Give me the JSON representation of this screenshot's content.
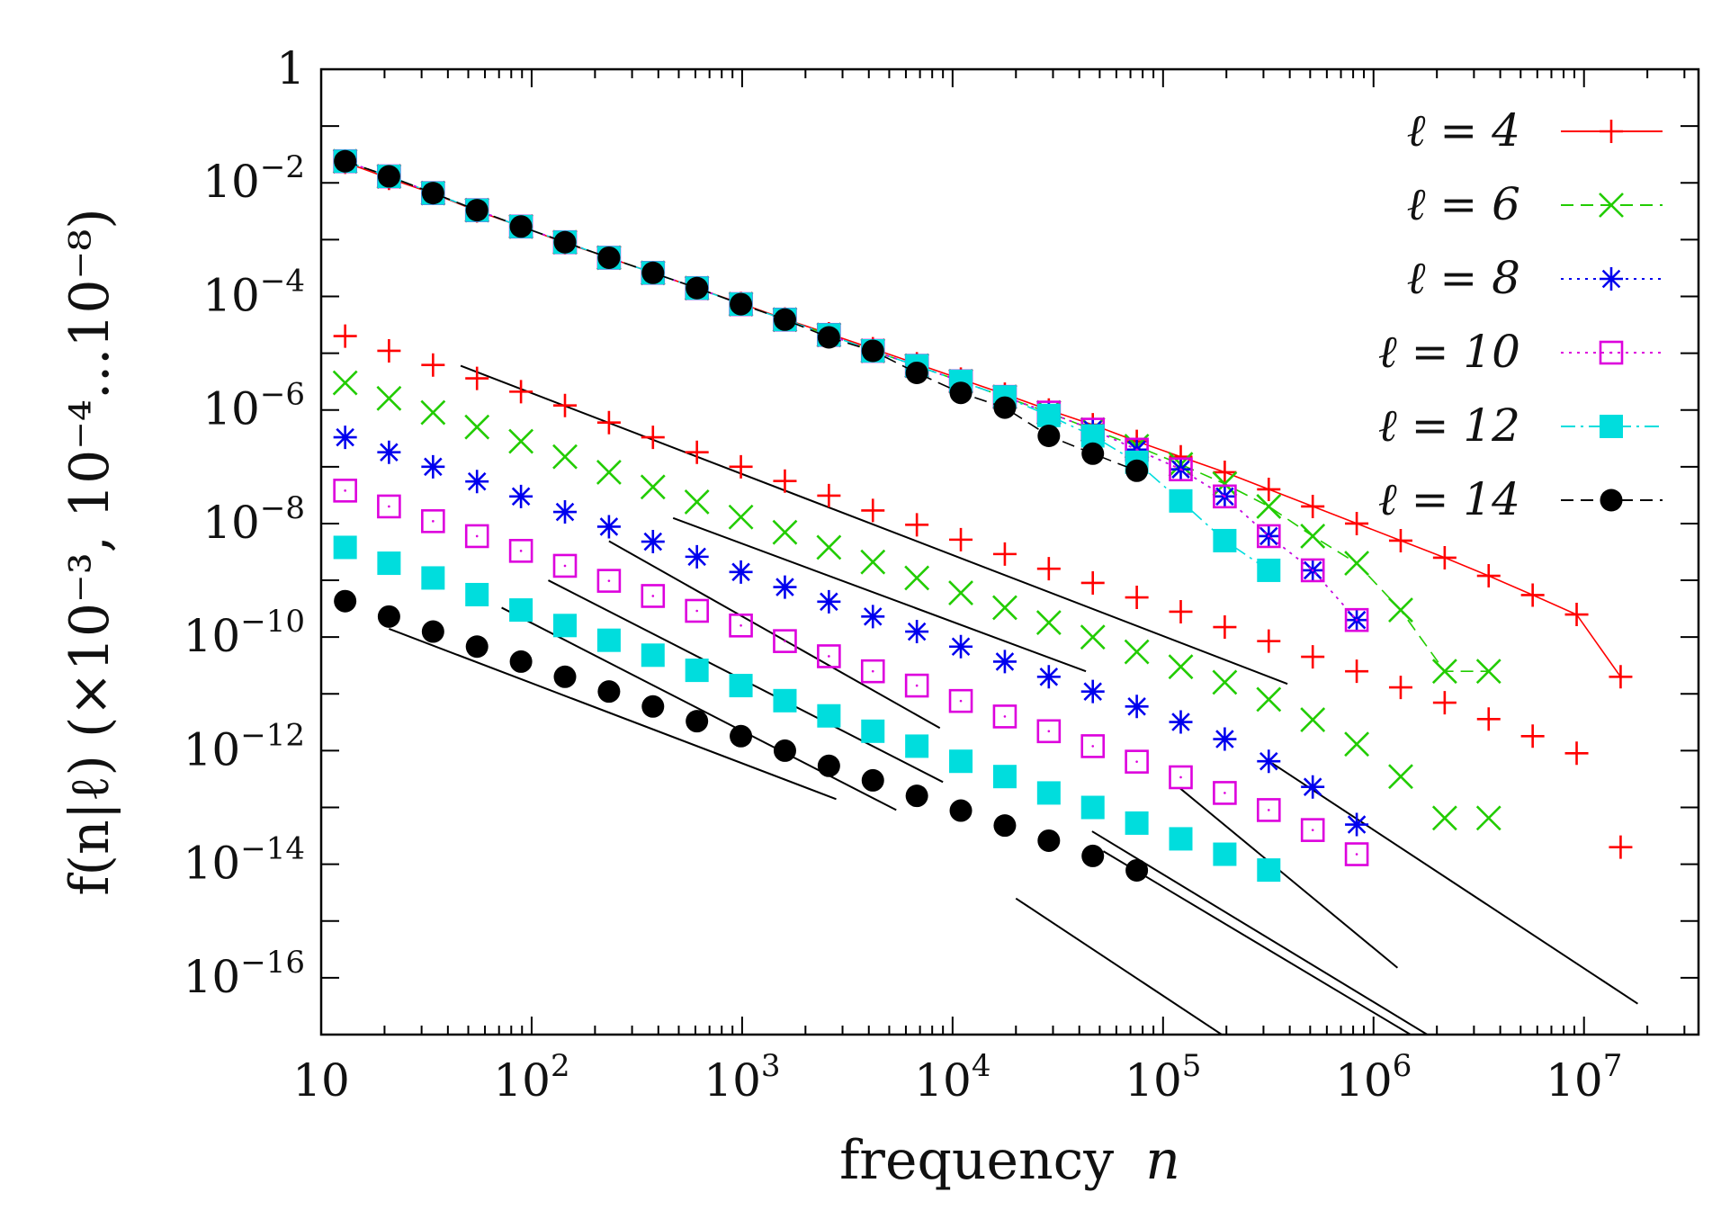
{
  "chart_data": {
    "type": "scatter",
    "title": "",
    "xlabel_text": "frequency",
    "xlabel_var": "n",
    "ylabel": "f(n|ℓ) (×10⁻³, 10⁻⁴...10⁻⁸)",
    "xscale": "log",
    "yscale": "log",
    "xlim": [
      10,
      35000000
    ],
    "ylim": [
      1e-17,
      1
    ],
    "x_ticks": [
      {
        "value": 10,
        "base": "10",
        "exp": ""
      },
      {
        "value": 100,
        "base": "10",
        "exp": "2"
      },
      {
        "value": 1000,
        "base": "10",
        "exp": "3"
      },
      {
        "value": 10000,
        "base": "10",
        "exp": "4"
      },
      {
        "value": 100000,
        "base": "10",
        "exp": "5"
      },
      {
        "value": 1000000,
        "base": "10",
        "exp": "6"
      },
      {
        "value": 10000000,
        "base": "10",
        "exp": "7"
      }
    ],
    "y_ticks": [
      {
        "value": 1,
        "base": "1",
        "exp": ""
      },
      {
        "value": 0.01,
        "base": "10",
        "exp": "−2"
      },
      {
        "value": 0.0001,
        "base": "10",
        "exp": "−4"
      },
      {
        "value": 1e-06,
        "base": "10",
        "exp": "−6"
      },
      {
        "value": 1e-08,
        "base": "10",
        "exp": "−8"
      },
      {
        "value": 1e-10,
        "base": "10",
        "exp": "−10"
      },
      {
        "value": 1e-12,
        "base": "10",
        "exp": "−12"
      },
      {
        "value": 1e-14,
        "base": "10",
        "exp": "−14"
      },
      {
        "value": 1e-16,
        "base": "10",
        "exp": "−16"
      }
    ],
    "legend_position": "top-right",
    "series": [
      {
        "name": "ℓ = 4",
        "marker": "plus",
        "color": "#ff0000",
        "line": "solid",
        "x": [
          13,
          21,
          34,
          55,
          89,
          144,
          233,
          377,
          610,
          987,
          1597,
          2584,
          4181,
          6765,
          10946,
          17711,
          28657,
          46368,
          75025,
          121393,
          196418,
          317811,
          514229,
          832040,
          1346269,
          2178309,
          3524578,
          5702887,
          9227465,
          14930352
        ],
        "unscaled": [
          0.023,
          0.012,
          0.0065,
          0.0032,
          0.0017,
          0.00088,
          0.00048,
          0.00026,
          0.00014,
          7.5e-05,
          4e-05,
          2.2e-05,
          1.2e-05,
          6.5e-06,
          3.5e-06,
          1.9e-06,
          1e-06,
          5.5e-07,
          2.8e-07,
          1.5e-07,
          8e-08,
          4e-08,
          2e-08,
          1e-08,
          5e-09,
          2.5e-09,
          1.2e-09,
          5.5e-10,
          2.5e-10,
          2e-11
        ],
        "scaled": [
          2e-05,
          1.1e-05,
          6.2e-06,
          3.6e-06,
          2.1e-06,
          1.2e-06,
          6e-07,
          3.3e-07,
          1.8e-07,
          1e-07,
          5.6e-08,
          3.1e-08,
          1.7e-08,
          9.5e-09,
          5.2e-09,
          2.9e-09,
          1.6e-09,
          9e-10,
          5e-10,
          2.8e-10,
          1.5e-10,
          8.5e-11,
          4.5e-11,
          2.5e-11,
          1.3e-11,
          7e-12,
          3.6e-12,
          1.8e-12,
          9e-13,
          2e-14
        ],
        "fit": {
          "x": [
            46,
            390000
          ],
          "y": [
            6e-06,
            1.5e-11
          ]
        }
      },
      {
        "name": "ℓ = 6",
        "marker": "cross",
        "color": "#22cc00",
        "line": "dashed",
        "x": [
          13,
          21,
          34,
          55,
          89,
          144,
          233,
          377,
          610,
          987,
          1597,
          2584,
          4181,
          6765,
          10946,
          17711,
          28657,
          46368,
          75025,
          121393,
          196418,
          317811,
          514229,
          832040,
          1346269,
          2178309,
          3524578
        ],
        "unscaled": [
          0.024,
          0.013,
          0.0066,
          0.0033,
          0.0017,
          0.0009,
          0.00048,
          0.00026,
          0.00014,
          7.3e-05,
          3.9e-05,
          2.1e-05,
          1.1e-05,
          6e-06,
          3.2e-06,
          1.7e-06,
          9e-07,
          4.5e-07,
          2.3e-07,
          1.1e-07,
          5e-08,
          2e-08,
          6e-09,
          2e-09,
          3e-10,
          2.5e-11,
          2.5e-11
        ],
        "scaled": [
          3e-06,
          1.6e-06,
          9e-07,
          5e-07,
          2.8e-07,
          1.5e-07,
          8e-08,
          4.4e-08,
          2.4e-08,
          1.3e-08,
          7e-09,
          3.8e-09,
          2.1e-09,
          1.1e-09,
          6e-10,
          3.3e-10,
          1.8e-10,
          1e-10,
          5.5e-11,
          3e-11,
          1.6e-11,
          8e-12,
          3.5e-12,
          1.3e-12,
          3.5e-13,
          6.5e-14,
          6.5e-14
        ],
        "fit": {
          "x": [
            470,
            43000
          ],
          "y": [
            1.25e-08,
            2.5e-11
          ]
        },
        "fit2": {
          "x": [
            330000,
            18000000
          ],
          "y": [
            6e-13,
            3.5e-17
          ]
        }
      },
      {
        "name": "ℓ = 8",
        "marker": "star",
        "color": "#0000ee",
        "line": "dotted",
        "x": [
          13,
          21,
          34,
          55,
          89,
          144,
          233,
          377,
          610,
          987,
          1597,
          2584,
          4181,
          6765,
          10946,
          17711,
          28657,
          46368,
          75025,
          121393,
          196418,
          317811,
          514229,
          832040
        ],
        "unscaled": [
          0.024,
          0.013,
          0.0066,
          0.0033,
          0.0017,
          0.0009,
          0.00048,
          0.00026,
          0.00014,
          7.3e-05,
          3.9e-05,
          2.1e-05,
          1.1e-05,
          6e-06,
          3.2e-06,
          1.7e-06,
          9e-07,
          4.5e-07,
          2e-07,
          9e-08,
          3e-08,
          6e-09,
          1.5e-09,
          2e-10
        ],
        "scaled": [
          3.3e-07,
          1.8e-07,
          1e-07,
          5.5e-08,
          3e-08,
          1.6e-08,
          8.8e-09,
          4.8e-09,
          2.6e-09,
          1.4e-09,
          7.6e-10,
          4.2e-10,
          2.3e-10,
          1.25e-10,
          6.8e-11,
          3.7e-11,
          2e-11,
          1.1e-11,
          6e-12,
          3.2e-12,
          1.6e-12,
          6.5e-13,
          2.3e-13,
          5e-14
        ],
        "fit": {
          "x": [
            233,
            8700
          ],
          "y": [
            4.9e-09,
            2.5e-12
          ]
        },
        "fit2": {
          "x": [
            120000,
            1300000
          ],
          "y": [
            2.2e-13,
            1.5e-16
          ]
        }
      },
      {
        "name": "ℓ = 10",
        "marker": "square-open",
        "color": "#dd00dd",
        "line": "dotted",
        "x": [
          13,
          21,
          34,
          55,
          89,
          144,
          233,
          377,
          610,
          987,
          1597,
          2584,
          4181,
          6765,
          10946,
          17711,
          28657,
          46368,
          75025,
          121393,
          196418,
          317811,
          514229,
          832040
        ],
        "unscaled": [
          0.024,
          0.013,
          0.0066,
          0.0033,
          0.0017,
          0.0009,
          0.00048,
          0.00026,
          0.00014,
          7.3e-05,
          3.9e-05,
          2.1e-05,
          1.1e-05,
          6e-06,
          3.2e-06,
          1.7e-06,
          9e-07,
          4.5e-07,
          2e-07,
          9e-08,
          3e-08,
          6e-09,
          1.5e-09,
          2e-10
        ],
        "scaled": [
          3.8e-08,
          2e-08,
          1.1e-08,
          6e-09,
          3.3e-09,
          1.8e-09,
          9.8e-10,
          5.3e-10,
          2.9e-10,
          1.6e-10,
          8.5e-11,
          4.6e-11,
          2.5e-11,
          1.4e-11,
          7.5e-12,
          4e-12,
          2.2e-12,
          1.2e-12,
          6.4e-13,
          3.4e-13,
          1.8e-13,
          9e-14,
          4e-14,
          1.5e-14
        ],
        "fit": {
          "x": [
            120,
            9000
          ],
          "y": [
            1e-09,
            2.8e-13
          ]
        },
        "fit2": {
          "x": [
            46000,
            1800000
          ],
          "y": [
            3.8e-14,
            1e-17
          ]
        }
      },
      {
        "name": "ℓ = 12",
        "marker": "square-filled",
        "color": "#00dddd",
        "line": "dashdot",
        "x": [
          13,
          21,
          34,
          55,
          89,
          144,
          233,
          377,
          610,
          987,
          1597,
          2584,
          4181,
          6765,
          10946,
          17711,
          28657,
          46368,
          75025,
          121393,
          196418,
          317811
        ],
        "unscaled": [
          0.024,
          0.013,
          0.0066,
          0.0033,
          0.0017,
          0.0009,
          0.00048,
          0.00026,
          0.00014,
          7.3e-05,
          3.9e-05,
          2.1e-05,
          1.1e-05,
          6e-06,
          3.2e-06,
          1.7e-06,
          8e-07,
          3.5e-07,
          1.2e-07,
          2.5e-08,
          5e-09,
          1.5e-09
        ],
        "scaled": [
          3.8e-09,
          2e-09,
          1.1e-09,
          5.6e-10,
          3e-10,
          1.6e-10,
          8.8e-11,
          4.8e-11,
          2.6e-11,
          1.4e-11,
          7.6e-12,
          4.1e-12,
          2.2e-12,
          1.2e-12,
          6.5e-13,
          3.5e-13,
          1.8e-13,
          1e-13,
          5.3e-14,
          2.8e-14,
          1.5e-14,
          7.9e-15
        ],
        "fit": {
          "x": [
            72,
            5400
          ],
          "y": [
            3.3e-10,
            9e-14
          ]
        },
        "fit2": {
          "x": [
            52000,
            1500000
          ],
          "y": [
            1.7e-14,
            1e-17
          ]
        }
      },
      {
        "name": "ℓ = 14",
        "marker": "circle-filled",
        "color": "#000000",
        "line": "dashed",
        "x": [
          13,
          21,
          34,
          55,
          89,
          144,
          233,
          377,
          610,
          987,
          1597,
          2584,
          4181,
          6765,
          10946,
          17711,
          28657,
          46368,
          75025
        ],
        "unscaled": [
          0.024,
          0.013,
          0.0066,
          0.0033,
          0.0017,
          0.0009,
          0.00048,
          0.00026,
          0.00014,
          7.3e-05,
          3.9e-05,
          1.9e-05,
          1.1e-05,
          4.5e-06,
          2e-06,
          1.1e-06,
          3.5e-07,
          1.7e-07,
          8.5e-08
        ],
        "scaled": [
          4.3e-10,
          2.3e-10,
          1.25e-10,
          6.8e-11,
          3.7e-11,
          2e-11,
          1.1e-11,
          6e-12,
          3.3e-12,
          1.8e-12,
          1e-12,
          5.4e-13,
          3e-13,
          1.6e-13,
          8.8e-14,
          4.8e-14,
          2.6e-14,
          1.4e-14,
          7.8e-15
        ],
        "fit": {
          "x": [
            21,
            2800
          ],
          "y": [
            1.4e-10,
            1.4e-13
          ]
        },
        "fit2": {
          "x": [
            20000,
            190000
          ],
          "y": [
            2.5e-15,
            1e-17
          ]
        }
      }
    ]
  }
}
